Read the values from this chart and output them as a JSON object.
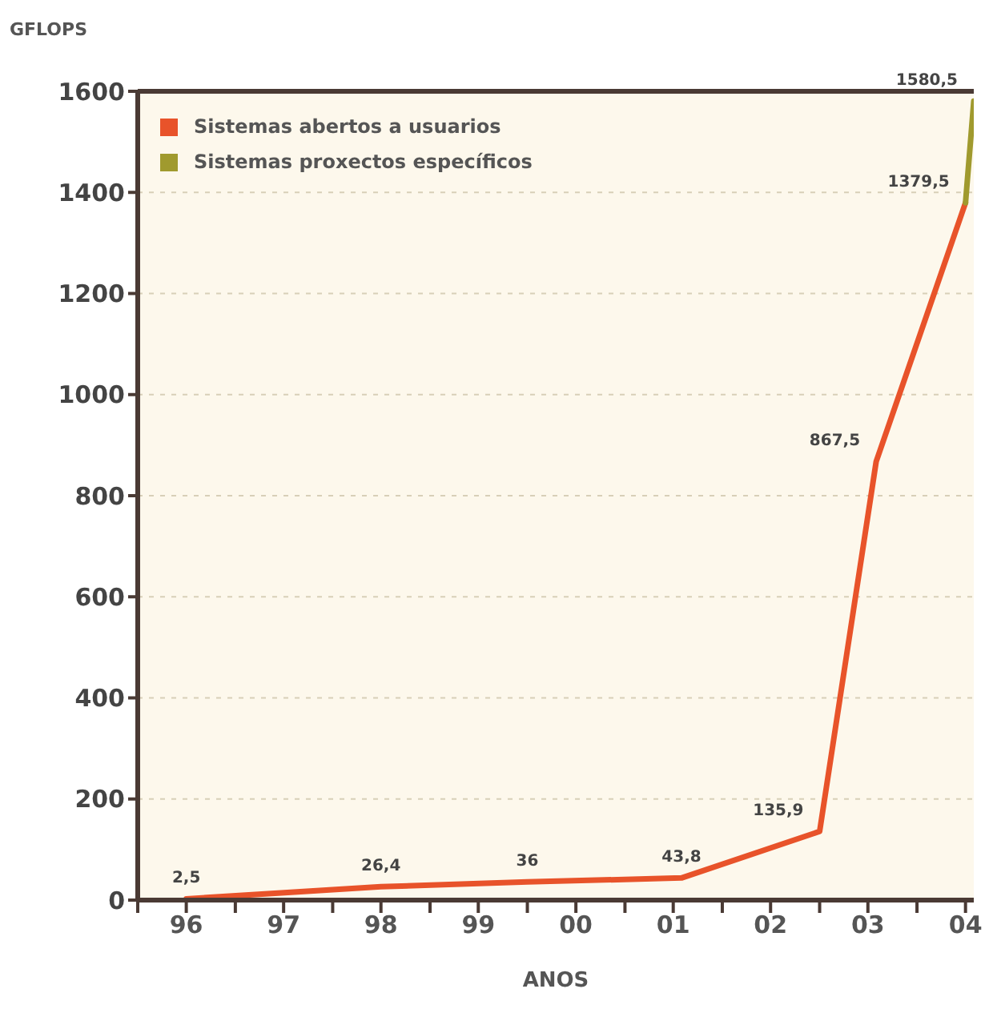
{
  "chart_data": {
    "type": "line",
    "ylabel": "GFLOPS",
    "xlabel": "ANOS",
    "xlim": [
      "1996-01",
      "2004-08"
    ],
    "xticks": [
      {
        "value": "1996-01",
        "label": null
      },
      {
        "value": "1996-07",
        "label": "96"
      },
      {
        "value": "1997-01",
        "label": null
      },
      {
        "value": "1997-07",
        "label": "97"
      },
      {
        "value": "1998-01",
        "label": null
      },
      {
        "value": "1998-07",
        "label": "98"
      },
      {
        "value": "1999-01",
        "label": null
      },
      {
        "value": "1999-07",
        "label": "99"
      },
      {
        "value": "2000-01",
        "label": null
      },
      {
        "value": "2000-07",
        "label": "00"
      },
      {
        "value": "2001-01",
        "label": null
      },
      {
        "value": "2001-07",
        "label": "01"
      },
      {
        "value": "2002-01",
        "label": null
      },
      {
        "value": "2002-07",
        "label": "02"
      },
      {
        "value": "2003-01",
        "label": null
      },
      {
        "value": "2003-07",
        "label": "03"
      },
      {
        "value": "2004-01",
        "label": null
      },
      {
        "value": "2004-07",
        "label": "04"
      }
    ],
    "ylim": [
      0,
      1600
    ],
    "yticks": [
      0,
      200,
      400,
      600,
      800,
      1000,
      1200,
      1400,
      1600
    ],
    "grid": "y",
    "legend": "top left",
    "marker": "none",
    "line_style": "solid",
    "series": [
      {
        "name": "Sistemas abertos a usuarios",
        "color": "#e8532a",
        "x": [
          "1996-07",
          "1998-07",
          "2000-01",
          "2001-08",
          "2003-01",
          "2003-08",
          "2004-07"
        ],
        "values": [
          2.5,
          26.4,
          36,
          43.8,
          135.9,
          867.5,
          1379.5
        ],
        "value_labels": [
          "2,5",
          "26,4",
          "36",
          "43,8",
          "135,9",
          "867,5",
          "1379,5"
        ]
      },
      {
        "name": "Sistemas proxectos específicos",
        "color": "#a09a2e",
        "x": [
          "2004-07",
          "2004-08"
        ],
        "values": [
          1379.5,
          1580.5
        ],
        "value_labels": [
          null,
          "1580,5"
        ]
      }
    ]
  }
}
